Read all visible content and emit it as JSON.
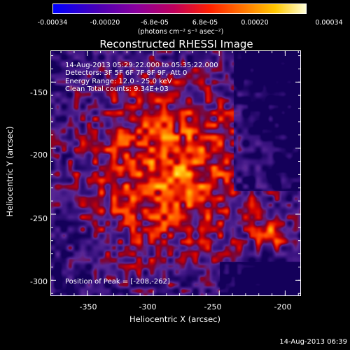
{
  "chart_data": {
    "type": "heatmap",
    "title": "Reconstructed RHESSI Image",
    "xlabel": "Heliocentric X (arcsec)",
    "ylabel": "Heliocentric Y (arcsec)",
    "xlim": [
      -378,
      -188
    ],
    "ylim": [
      -312,
      -126
    ],
    "x_ticks": [
      -350,
      -300,
      -250,
      -200
    ],
    "y_ticks": [
      -150,
      -200,
      -250,
      -300
    ],
    "colorbar": {
      "ticks": [
        "-0.00034",
        "-0.00020",
        "-6.8e-05",
        "6.8e-05",
        "0.00020",
        "0.00034"
      ],
      "units": "(photons cm⁻² s⁻¹ asec⁻²)",
      "range": [
        -0.00034,
        0.00034
      ]
    },
    "annotations": [
      "14-Aug-2013 05:29:22.000 to 05:35:22.000",
      "Detectors: 3F 5F 6F 7F 8F 9F, Att 0",
      "Energy Range: 12.0 - 25.0 keV",
      "Clean     Total counts: 9.34E+03"
    ],
    "peak_label": "Position of Peak = [-208,-262]",
    "peak": [
      -208,
      -262
    ]
  },
  "timestamp": "14-Aug-2013 06:39"
}
